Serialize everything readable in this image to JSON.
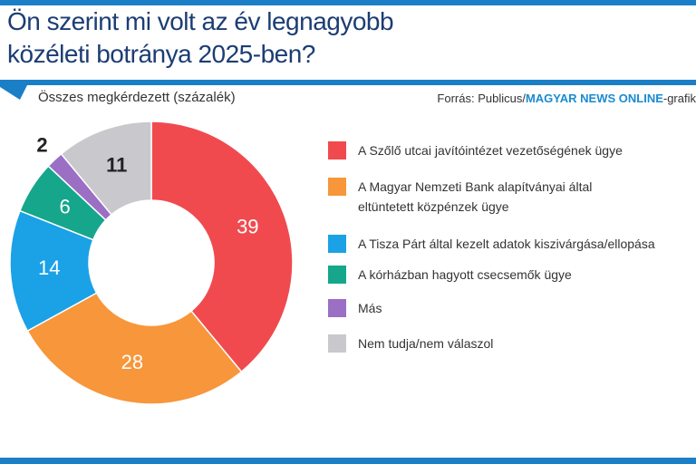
{
  "chart_data": {
    "type": "donut",
    "title": "Ön szerint mi volt az év legnagyobb közéleti botránya 2025-ben?",
    "subtitle": "Összes megkérdezett (százalék)",
    "source": [
      "Forrás: Publicus/",
      "MAGYAR NEWS ONLINE",
      "-grafik"
    ],
    "categories": [
      "A Szőlő utcai javítóintézet vezetőségének ügye",
      "A Magyar Nemzeti Bank alapítványai által eltüntetett közpénzek ügye",
      "A Tisza Párt által kezelt adatok kiszivárgása/ellopása",
      "A kórházban hagyott csecsemők ügye",
      "Más",
      "Nem tudja/nem válaszol"
    ],
    "values": [
      39,
      28,
      14,
      6,
      2,
      11
    ],
    "colors": [
      "#f04a4f",
      "#f7963a",
      "#1ba1e6",
      "#16a68b",
      "#9b6fc4",
      "#c9c9cd"
    ]
  }
}
